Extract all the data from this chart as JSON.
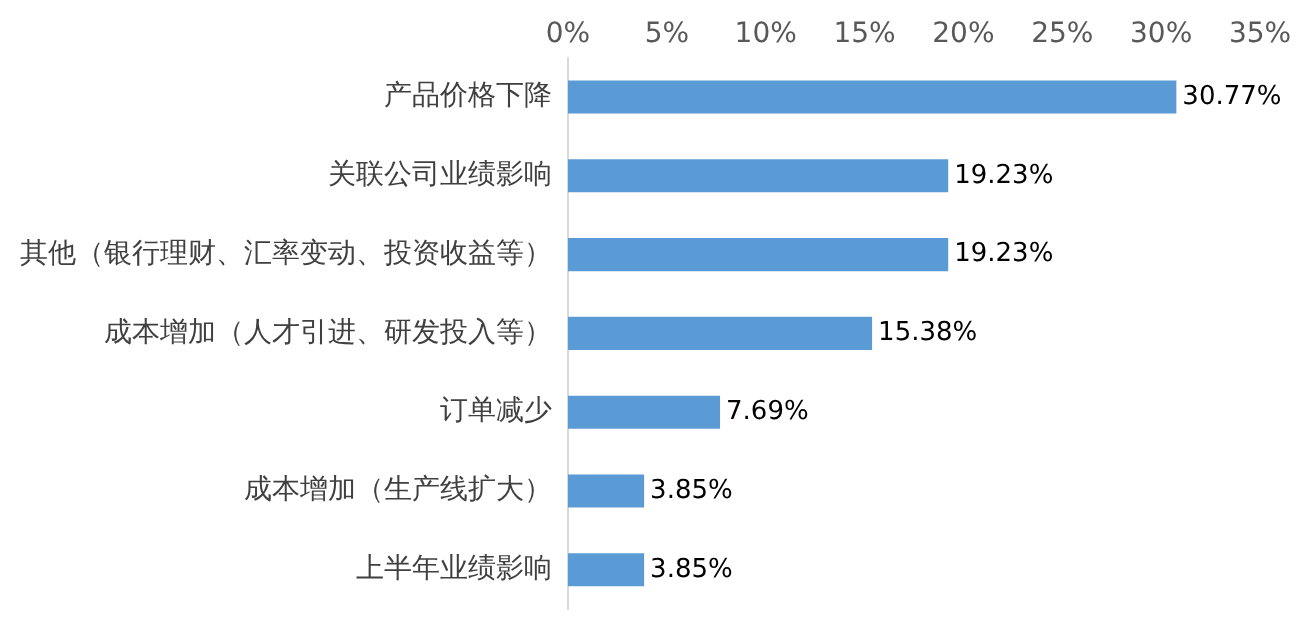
{
  "chart_data": {
    "type": "bar",
    "orientation": "horizontal",
    "categories": [
      "产品价格下降",
      "关联公司业绩影响",
      "其他（银行理财、汇率变动、投资收益等）",
      "成本增加（人才引进、研发投入等）",
      "订单减少",
      "成本增加（生产线扩大）",
      "上半年业绩影响"
    ],
    "values": [
      30.77,
      19.23,
      19.23,
      15.38,
      7.69,
      3.85,
      3.85
    ],
    "value_labels": [
      "30.77%",
      "19.23%",
      "19.23%",
      "15.38%",
      "7.69%",
      "3.85%",
      "3.85%"
    ],
    "color": "#5b9bd5",
    "xlim": [
      0,
      35
    ],
    "xticks": [
      {
        "value": 0,
        "label": "0%"
      },
      {
        "value": 5,
        "label": "5%"
      },
      {
        "value": 10,
        "label": "10%"
      },
      {
        "value": 15,
        "label": "15%"
      },
      {
        "value": 20,
        "label": "20%"
      },
      {
        "value": 25,
        "label": "25%"
      },
      {
        "value": 30,
        "label": "30%"
      },
      {
        "value": 35,
        "label": "35%"
      }
    ],
    "grid": false,
    "legend": false
  }
}
